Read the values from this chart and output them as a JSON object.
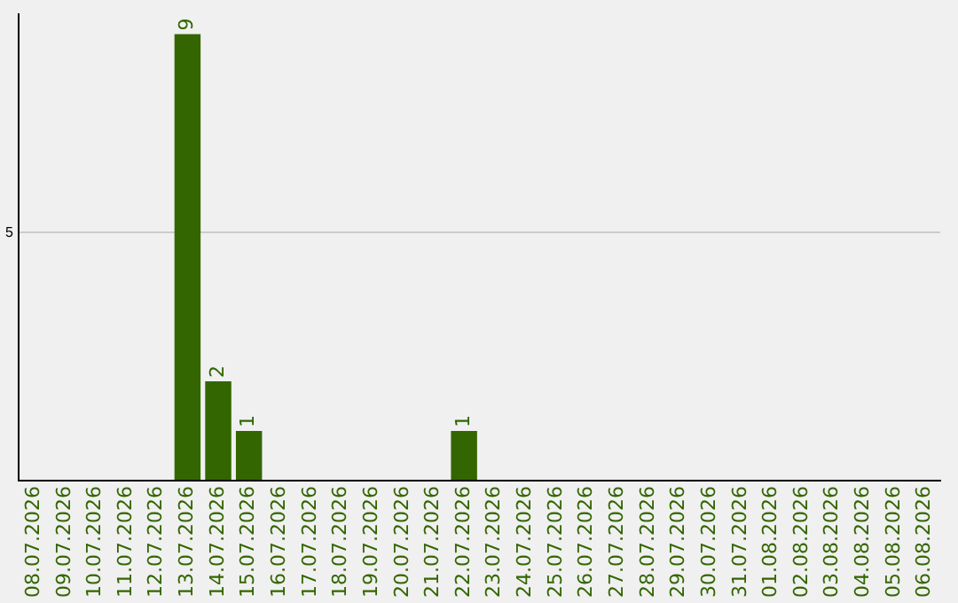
{
  "chart_data": {
    "type": "bar",
    "categories": [
      "08.07.2026",
      "09.07.2026",
      "10.07.2026",
      "11.07.2026",
      "12.07.2026",
      "13.07.2026",
      "14.07.2026",
      "15.07.2026",
      "16.07.2026",
      "17.07.2026",
      "18.07.2026",
      "19.07.2026",
      "20.07.2026",
      "21.07.2026",
      "22.07.2026",
      "23.07.2026",
      "24.07.2026",
      "25.07.2026",
      "26.07.2026",
      "27.07.2026",
      "28.07.2026",
      "29.07.2026",
      "30.07.2026",
      "31.07.2026",
      "01.08.2026",
      "02.08.2026",
      "03.08.2026",
      "04.08.2026",
      "05.08.2026",
      "06.08.2026"
    ],
    "values": [
      0,
      0,
      0,
      0,
      0,
      9,
      2,
      1,
      0,
      0,
      0,
      0,
      0,
      0,
      1,
      0,
      0,
      0,
      0,
      0,
      0,
      0,
      0,
      0,
      0,
      0,
      0,
      0,
      0,
      0
    ],
    "value_labels": [
      null,
      null,
      null,
      null,
      null,
      "9",
      "2",
      "1",
      null,
      null,
      null,
      null,
      null,
      null,
      "1",
      null,
      null,
      null,
      null,
      null,
      null,
      null,
      null,
      null,
      null,
      null,
      null,
      null,
      null,
      null
    ],
    "color": "#336600",
    "ylim": [
      0,
      9.4
    ],
    "yticks": [
      {
        "value": 0,
        "label": null
      },
      5
    ],
    "grid": "y",
    "legend": false
  }
}
